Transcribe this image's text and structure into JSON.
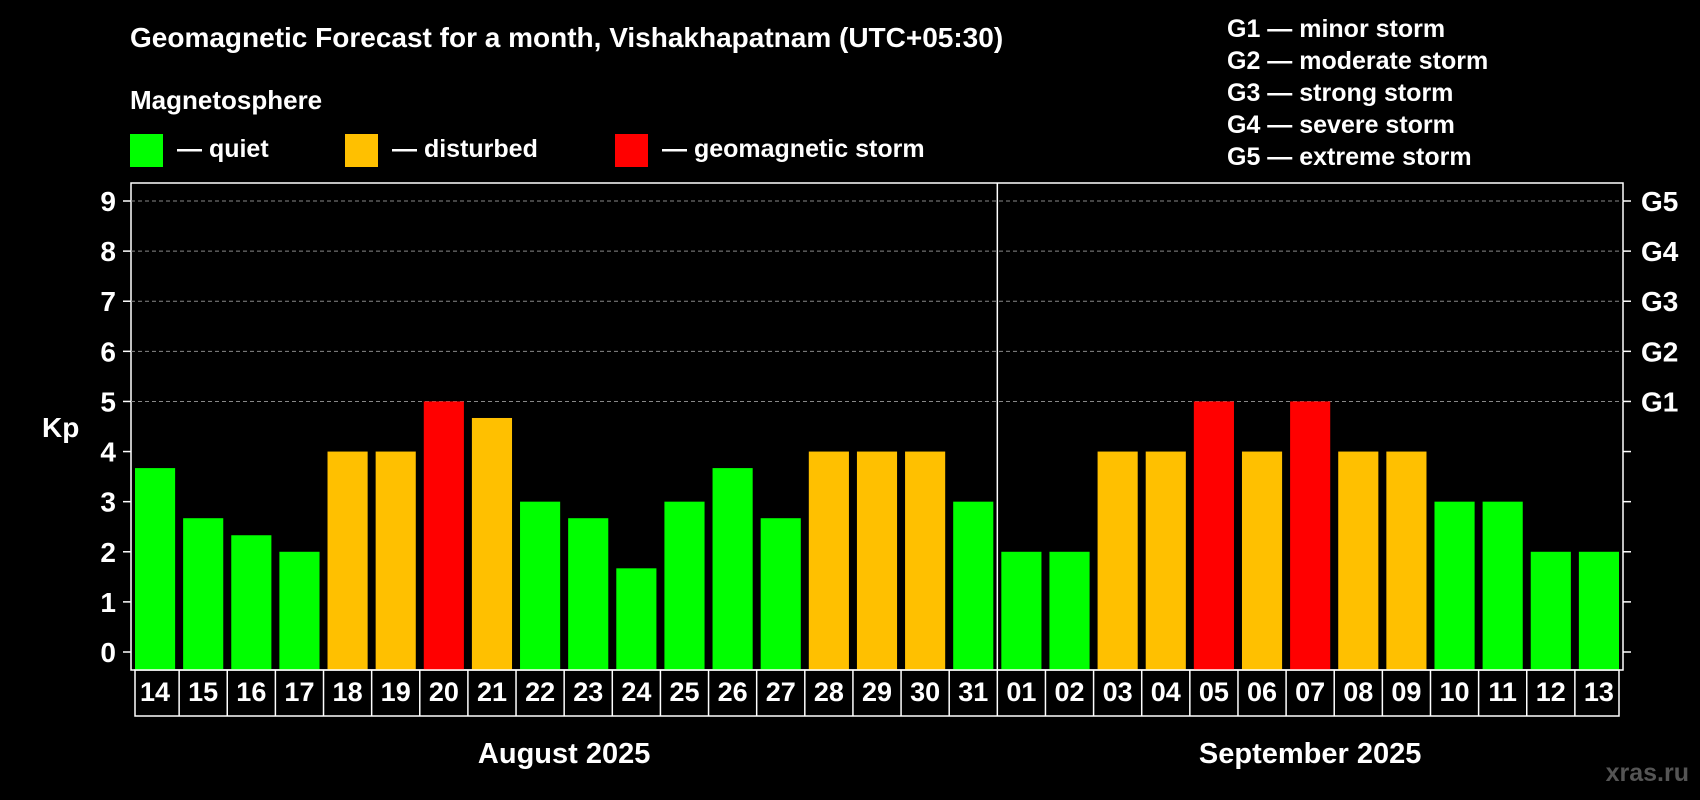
{
  "chart_data": {
    "type": "bar",
    "title": "Geomagnetic Forecast for a month, Vishakhapatnam (UTC+05:30)",
    "legend_title": "Magnetosphere",
    "legend": [
      {
        "key": "quiet",
        "label": "— quiet",
        "color": "#00ff00"
      },
      {
        "key": "disturbed",
        "label": "— disturbed",
        "color": "#ffc000"
      },
      {
        "key": "storm",
        "label": "— geomagnetic storm",
        "color": "#ff0000"
      }
    ],
    "storm_scale": [
      "G1 — minor storm",
      "G2 — moderate storm",
      "G3 — strong storm",
      "G4 — severe storm",
      "G5 — extreme storm"
    ],
    "ylabel": "Kp",
    "ylim": [
      0,
      9
    ],
    "yticks": [
      "0",
      "1",
      "2",
      "3",
      "4",
      "5",
      "6",
      "7",
      "8",
      "9"
    ],
    "right_ticks": [
      {
        "value": 5,
        "label": "G1"
      },
      {
        "value": 6,
        "label": "G2"
      },
      {
        "value": 7,
        "label": "G3"
      },
      {
        "value": 8,
        "label": "G4"
      },
      {
        "value": 9,
        "label": "G5"
      }
    ],
    "categories": [
      "14",
      "15",
      "16",
      "17",
      "18",
      "19",
      "20",
      "21",
      "22",
      "23",
      "24",
      "25",
      "26",
      "27",
      "28",
      "29",
      "30",
      "31",
      "01",
      "02",
      "03",
      "04",
      "05",
      "06",
      "07",
      "08",
      "09",
      "10",
      "11",
      "12",
      "13"
    ],
    "values": [
      3.67,
      2.67,
      2.33,
      2.0,
      4.0,
      4.0,
      5.0,
      4.67,
      3.0,
      2.67,
      1.67,
      3.0,
      3.67,
      2.67,
      4.0,
      4.0,
      4.0,
      3.0,
      2.0,
      2.0,
      4.0,
      4.0,
      5.0,
      4.0,
      5.0,
      4.0,
      4.0,
      3.0,
      3.0,
      2.0,
      2.0
    ],
    "levels": [
      "quiet",
      "quiet",
      "quiet",
      "quiet",
      "disturbed",
      "disturbed",
      "storm",
      "disturbed",
      "quiet",
      "quiet",
      "quiet",
      "quiet",
      "quiet",
      "quiet",
      "disturbed",
      "disturbed",
      "disturbed",
      "quiet",
      "quiet",
      "quiet",
      "disturbed",
      "disturbed",
      "storm",
      "disturbed",
      "storm",
      "disturbed",
      "disturbed",
      "quiet",
      "quiet",
      "quiet",
      "quiet"
    ],
    "months": [
      {
        "label": "August 2025",
        "count": 18
      },
      {
        "label": "September 2025",
        "count": 13
      }
    ],
    "grid": true
  },
  "watermark": "xras.ru"
}
